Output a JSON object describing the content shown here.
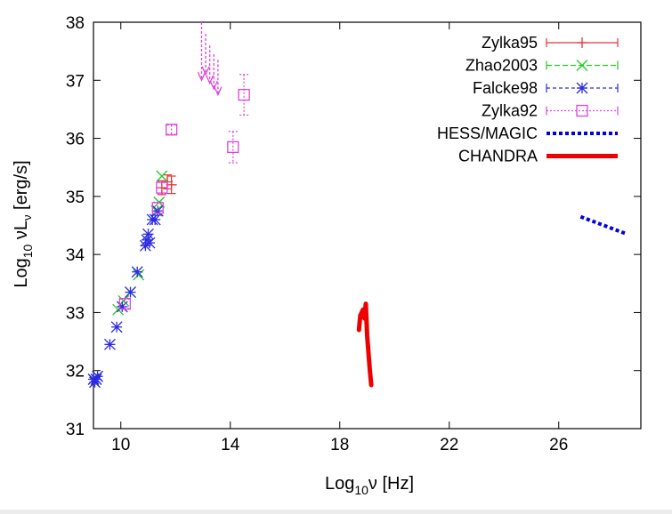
{
  "chart_data": {
    "type": "scatter",
    "title": "",
    "xlabel": "Log",
    "xlabel_sub": "10",
    "xlabel_tail": "ν  [Hz]",
    "ylabel": "Log",
    "ylabel_sub": "10",
    "ylabel_tail": " νL",
    "ylabel_nu_sub": "ν",
    "ylabel_unit": " [erg/s]",
    "xlim": [
      9,
      29
    ],
    "ylim": [
      31,
      38
    ],
    "xticks": [
      10,
      14,
      18,
      22,
      26
    ],
    "yticks": [
      31,
      32,
      33,
      34,
      35,
      36,
      37,
      38
    ],
    "grid": false,
    "legend_position": "top-right",
    "colors": {
      "Zylka95": "#e8333a",
      "Zhao2003": "#22cc22",
      "Falcke98": "#2a2ae0",
      "Zylka92": "#dd44dd",
      "HESS/MAGIC": "#0000dd",
      "CHANDRA": "#ee0000"
    },
    "series": [
      {
        "name": "Zylka95",
        "marker": "plus",
        "points": [
          {
            "x": 11.5,
            "y": 35.15,
            "err": 0.12
          },
          {
            "x": 11.7,
            "y": 35.25,
            "err": 0.12
          },
          {
            "x": 11.85,
            "y": 35.2,
            "err": 0.15
          }
        ]
      },
      {
        "name": "Zhao2003",
        "marker": "cross",
        "points": [
          {
            "x": 9.9,
            "y": 33.05
          },
          {
            "x": 10.1,
            "y": 33.2
          },
          {
            "x": 10.35,
            "y": 33.35
          },
          {
            "x": 10.65,
            "y": 33.65
          },
          {
            "x": 11.3,
            "y": 34.75
          },
          {
            "x": 11.4,
            "y": 34.9
          },
          {
            "x": 11.5,
            "y": 35.35
          }
        ]
      },
      {
        "name": "Falcke98",
        "marker": "star",
        "points": [
          {
            "x": 9.0,
            "y": 31.85
          },
          {
            "x": 9.05,
            "y": 31.8
          },
          {
            "x": 9.1,
            "y": 31.85
          },
          {
            "x": 9.15,
            "y": 31.9
          },
          {
            "x": 9.6,
            "y": 32.45
          },
          {
            "x": 9.85,
            "y": 32.75
          },
          {
            "x": 10.05,
            "y": 33.1
          },
          {
            "x": 10.35,
            "y": 33.35
          },
          {
            "x": 10.6,
            "y": 33.7
          },
          {
            "x": 10.9,
            "y": 34.15
          },
          {
            "x": 10.95,
            "y": 34.25
          },
          {
            "x": 11.0,
            "y": 34.35
          },
          {
            "x": 11.05,
            "y": 34.2
          },
          {
            "x": 11.15,
            "y": 34.6
          },
          {
            "x": 11.25,
            "y": 34.6
          },
          {
            "x": 11.35,
            "y": 34.75
          }
        ]
      },
      {
        "name": "Zylka92",
        "marker": "square",
        "points": [
          {
            "x": 10.15,
            "y": 33.15,
            "err": 0.08
          },
          {
            "x": 11.35,
            "y": 34.8,
            "err": 0.1
          },
          {
            "x": 11.5,
            "y": 35.15,
            "err": 0.1
          },
          {
            "x": 11.85,
            "y": 36.15,
            "err": 0.08
          },
          {
            "x": 14.1,
            "y": 35.85,
            "err": 0.27
          },
          {
            "x": 14.5,
            "y": 36.75,
            "err": 0.35
          }
        ],
        "upper_limits": [
          {
            "x": 12.95,
            "y_top": 38.0,
            "y_bottom": 37.0
          },
          {
            "x": 13.1,
            "y_top": 37.8,
            "y_bottom": 37.1
          },
          {
            "x": 13.25,
            "y_top": 37.6,
            "y_bottom": 36.95
          },
          {
            "x": 13.4,
            "y_top": 37.45,
            "y_bottom": 36.85
          },
          {
            "x": 13.55,
            "y_top": 37.35,
            "y_bottom": 36.75
          }
        ]
      },
      {
        "name": "HESS/MAGIC",
        "line": "dotted",
        "points": [
          {
            "x": 26.8,
            "y": 34.65
          },
          {
            "x": 28.5,
            "y": 34.35
          }
        ]
      },
      {
        "name": "CHANDRA",
        "line": "solid",
        "points": [
          {
            "x": 18.7,
            "y": 32.7
          },
          {
            "x": 18.75,
            "y": 32.95
          },
          {
            "x": 18.85,
            "y": 33.05
          },
          {
            "x": 18.9,
            "y": 32.9
          },
          {
            "x": 18.95,
            "y": 33.15
          },
          {
            "x": 19.0,
            "y": 32.6
          },
          {
            "x": 19.05,
            "y": 32.3
          },
          {
            "x": 19.1,
            "y": 32.0
          },
          {
            "x": 19.15,
            "y": 31.75
          }
        ]
      }
    ]
  }
}
